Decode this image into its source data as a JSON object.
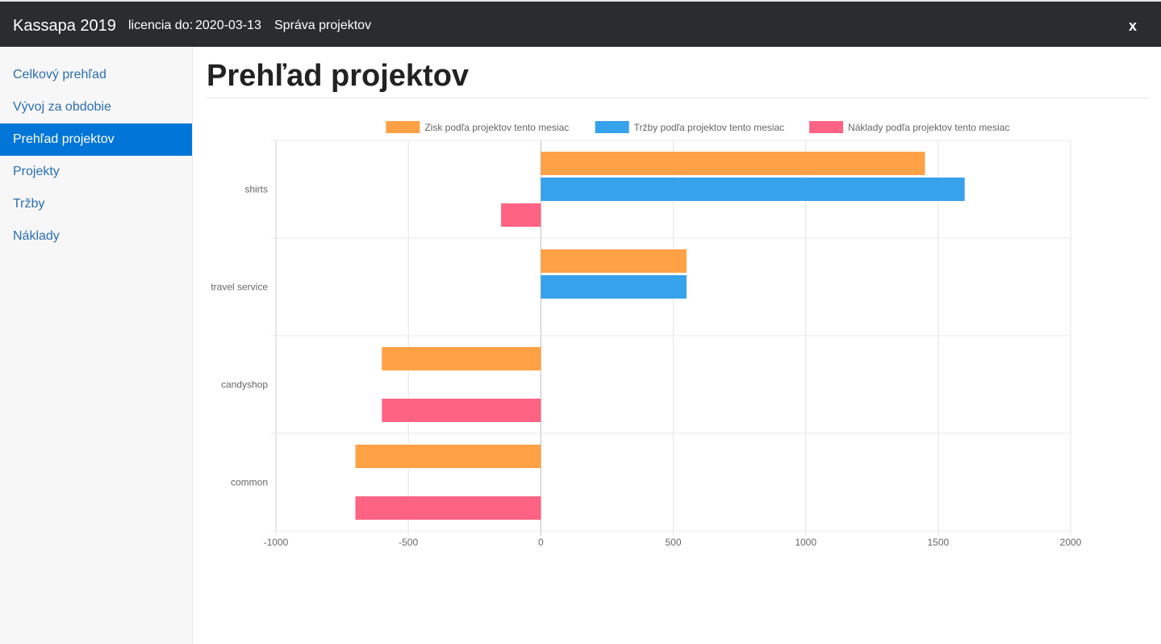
{
  "header": {
    "app_title": "Kassapa 2019",
    "license_label": "licencia do:",
    "license_date": "2020-03-13",
    "nav_link": "Správa projektov",
    "close_label": "x"
  },
  "sidebar": {
    "items": [
      {
        "label": "Celkový prehľad",
        "active": false
      },
      {
        "label": "Vývoj za obdobie",
        "active": false
      },
      {
        "label": "Prehľad projektov",
        "active": true
      },
      {
        "label": "Projekty",
        "active": false
      },
      {
        "label": "Tržby",
        "active": false
      },
      {
        "label": "Náklady",
        "active": false
      }
    ]
  },
  "main": {
    "title": "Prehľad projektov"
  },
  "chart_data": {
    "type": "bar",
    "orientation": "horizontal",
    "categories": [
      "shirts",
      "travel service",
      "candyshop",
      "common"
    ],
    "series": [
      {
        "name": "Zisk podľa projektov tento mesiac",
        "color": "#ffa144",
        "values": [
          1450,
          550,
          -600,
          -700
        ]
      },
      {
        "name": "Tržby podľa projektov tento mesiac",
        "color": "#36a2eb",
        "values": [
          1600,
          550,
          0,
          0
        ]
      },
      {
        "name": "Náklady podľa projektov tento mesiac",
        "color": "#ff6384",
        "values": [
          -150,
          0,
          -600,
          -700
        ]
      }
    ],
    "xlim": [
      -1000,
      2000
    ],
    "xticks": [
      "-1000",
      "-500",
      "0",
      "500",
      "1000",
      "1500",
      "2000"
    ],
    "xtick_values": [
      -1000,
      -500,
      0,
      500,
      1000,
      1500,
      2000
    ],
    "legend": "top",
    "grid": true
  }
}
